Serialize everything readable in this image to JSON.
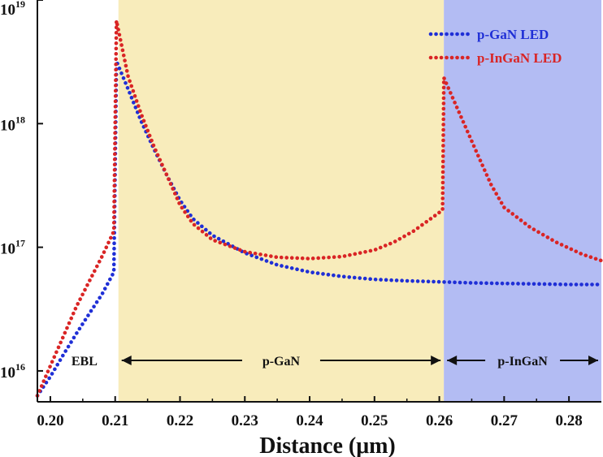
{
  "chart_data": {
    "type": "line",
    "xlabel": "Distance (μm)",
    "ylabel": "",
    "xlim": [
      0.198,
      0.285
    ],
    "ylim_log10": [
      15.75,
      19.0
    ],
    "y_scale": "log",
    "x_ticks": [
      0.2,
      0.21,
      0.22,
      0.23,
      0.24,
      0.25,
      0.26,
      0.27,
      0.28
    ],
    "x_tick_labels": [
      "0.20",
      "0.21",
      "0.22",
      "0.23",
      "0.24",
      "0.25",
      "0.26",
      "0.27",
      "0.28"
    ],
    "y_ticks": [
      {
        "base": "10",
        "exp": "16",
        "log": 16
      },
      {
        "base": "10",
        "exp": "17",
        "log": 17
      },
      {
        "base": "10",
        "exp": "18",
        "log": 18
      },
      {
        "base": "10",
        "exp": "19",
        "log": 19
      }
    ],
    "legend_position": "top-right",
    "regions": [
      {
        "label": "EBL",
        "x_range": [
          0.198,
          0.2105
        ],
        "color": "#ffffff"
      },
      {
        "label": "p-GaN",
        "x_range": [
          0.2105,
          0.2607
        ],
        "color": "#f8ecbb"
      },
      {
        "label": "p-InGaN",
        "x_range": [
          0.2607,
          0.285
        ],
        "color": "#b3bcf3"
      }
    ],
    "series": [
      {
        "name": "p-GaN LED",
        "color": "#1f2fd6",
        "x": [
          0.198,
          0.2,
          0.202,
          0.204,
          0.206,
          0.208,
          0.2098,
          0.2102,
          0.212,
          0.214,
          0.216,
          0.218,
          0.22,
          0.222,
          0.225,
          0.23,
          0.235,
          0.24,
          0.245,
          0.25,
          0.255,
          0.26,
          0.265,
          0.27,
          0.275,
          0.28,
          0.285
        ],
        "y": [
          6300000000000000.0,
          9000000000000000.0,
          1.35e+16,
          2e+16,
          2.9e+16,
          4.2e+16,
          6.3e+16,
          3.2e+18,
          1.9e+18,
          1.05e+18,
          6.2e+17,
          3.8e+17,
          2.4e+17,
          1.7e+17,
          1.25e+17,
          9e+16,
          7.2e+16,
          6.3e+16,
          5.8e+16,
          5.5e+16,
          5.35e+16,
          5.25e+16,
          5.15e+16,
          5.1e+16,
          5.05e+16,
          5e+16,
          5e+16
        ]
      },
      {
        "name": "p-InGaN LED",
        "color": "#d92525",
        "x": [
          0.198,
          0.2,
          0.202,
          0.204,
          0.206,
          0.208,
          0.2098,
          0.2102,
          0.212,
          0.214,
          0.216,
          0.218,
          0.22,
          0.222,
          0.225,
          0.23,
          0.235,
          0.24,
          0.245,
          0.25,
          0.253,
          0.256,
          0.259,
          0.2605,
          0.2607,
          0.263,
          0.266,
          0.268,
          0.27,
          0.274,
          0.278,
          0.282,
          0.285
        ],
        "y": [
          6300000000000000.0,
          1.1e+16,
          1.9e+16,
          3.3e+16,
          5.3e+16,
          8.5e+16,
          1.35e+17,
          6.8e+18,
          2.4e+18,
          1.2e+18,
          6.5e+17,
          3.8e+17,
          2.2e+17,
          1.55e+17,
          1.15e+17,
          9.2e+16,
          8.3e+16,
          8.1e+16,
          8.4e+16,
          9.5e+16,
          1.1e+17,
          1.35e+17,
          1.75e+17,
          2e+17,
          2.35e+18,
          1.25e+18,
          5.5e+17,
          3.2e+17,
          2.1e+17,
          1.45e+17,
          1.1e+17,
          8.8e+16,
          7.8e+16
        ]
      }
    ]
  }
}
